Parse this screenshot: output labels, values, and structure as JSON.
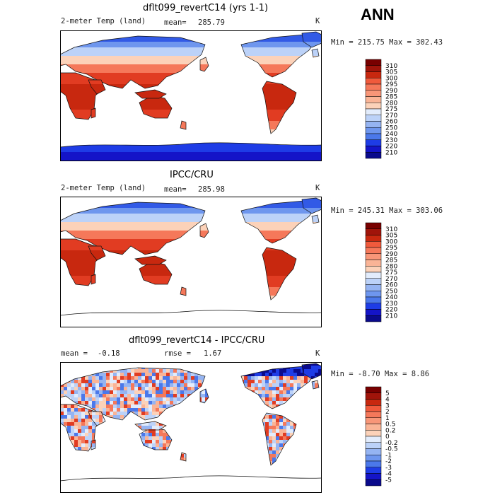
{
  "season": "ANN",
  "colors": {
    "abs": [
      "#0a0a8c",
      "#1414c8",
      "#1e3ce6",
      "#325ae6",
      "#4b78ea",
      "#6e96ee",
      "#95b4f2",
      "#bcd2f8",
      "#e2ecfc",
      "#fff0e4",
      "#fcd2b9",
      "#fab496",
      "#f89678",
      "#f5785a",
      "#f05a3c",
      "#e13c22",
      "#c8280f",
      "#a0140a",
      "#780000"
    ],
    "diff": [
      "#0a0a8c",
      "#1414c8",
      "#1e3ce6",
      "#325ae6",
      "#4b78ea",
      "#6e96ee",
      "#95b4f2",
      "#bcd2f8",
      "#e2ecfc",
      "#fff0e4",
      "#fcd2b9",
      "#fab496",
      "#f89678",
      "#f5785a",
      "#f05a3c",
      "#e13c22",
      "#c8280f",
      "#a0140a",
      "#780000"
    ]
  },
  "chart_data": [
    {
      "type": "heatmap",
      "title": "dflt099_revertC14 (yrs 1-1)",
      "left_label": "2-meter Temp (land)",
      "stat_label": "mean=",
      "stat_value": "285.79",
      "units": "K",
      "min_max": "Min = 215.75 Max = 302.43",
      "colorbar_levels": [
        "310",
        "305",
        "300",
        "295",
        "290",
        "285",
        "280",
        "275",
        "270",
        "260",
        "250",
        "240",
        "230",
        "220",
        "210"
      ],
      "palette": "abs",
      "has_antarctica": true
    },
    {
      "type": "heatmap",
      "title": "IPCC/CRU",
      "left_label": "2-meter Temp (land)",
      "stat_label": "mean=",
      "stat_value": "285.98",
      "units": "K",
      "min_max": "Min = 245.31 Max = 303.06",
      "colorbar_levels": [
        "310",
        "305",
        "300",
        "295",
        "290",
        "285",
        "280",
        "275",
        "270",
        "260",
        "250",
        "240",
        "230",
        "220",
        "210"
      ],
      "palette": "abs",
      "has_antarctica": false
    },
    {
      "type": "heatmap",
      "title": "dflt099_revertC14 - IPCC/CRU",
      "left_label": "mean =",
      "left_value": "-0.18",
      "stat_label": "rmse =",
      "stat_value": "1.67",
      "units": "K",
      "min_max": "Min = -8.70 Max = 8.86",
      "colorbar_levels": [
        "5",
        "4",
        "3",
        "2",
        "1",
        "0.5",
        "0.2",
        "0",
        "-0.2",
        "-0.5",
        "-1",
        "-2",
        "-3",
        "-4",
        "-5"
      ],
      "palette": "diff",
      "has_antarctica": false
    }
  ]
}
